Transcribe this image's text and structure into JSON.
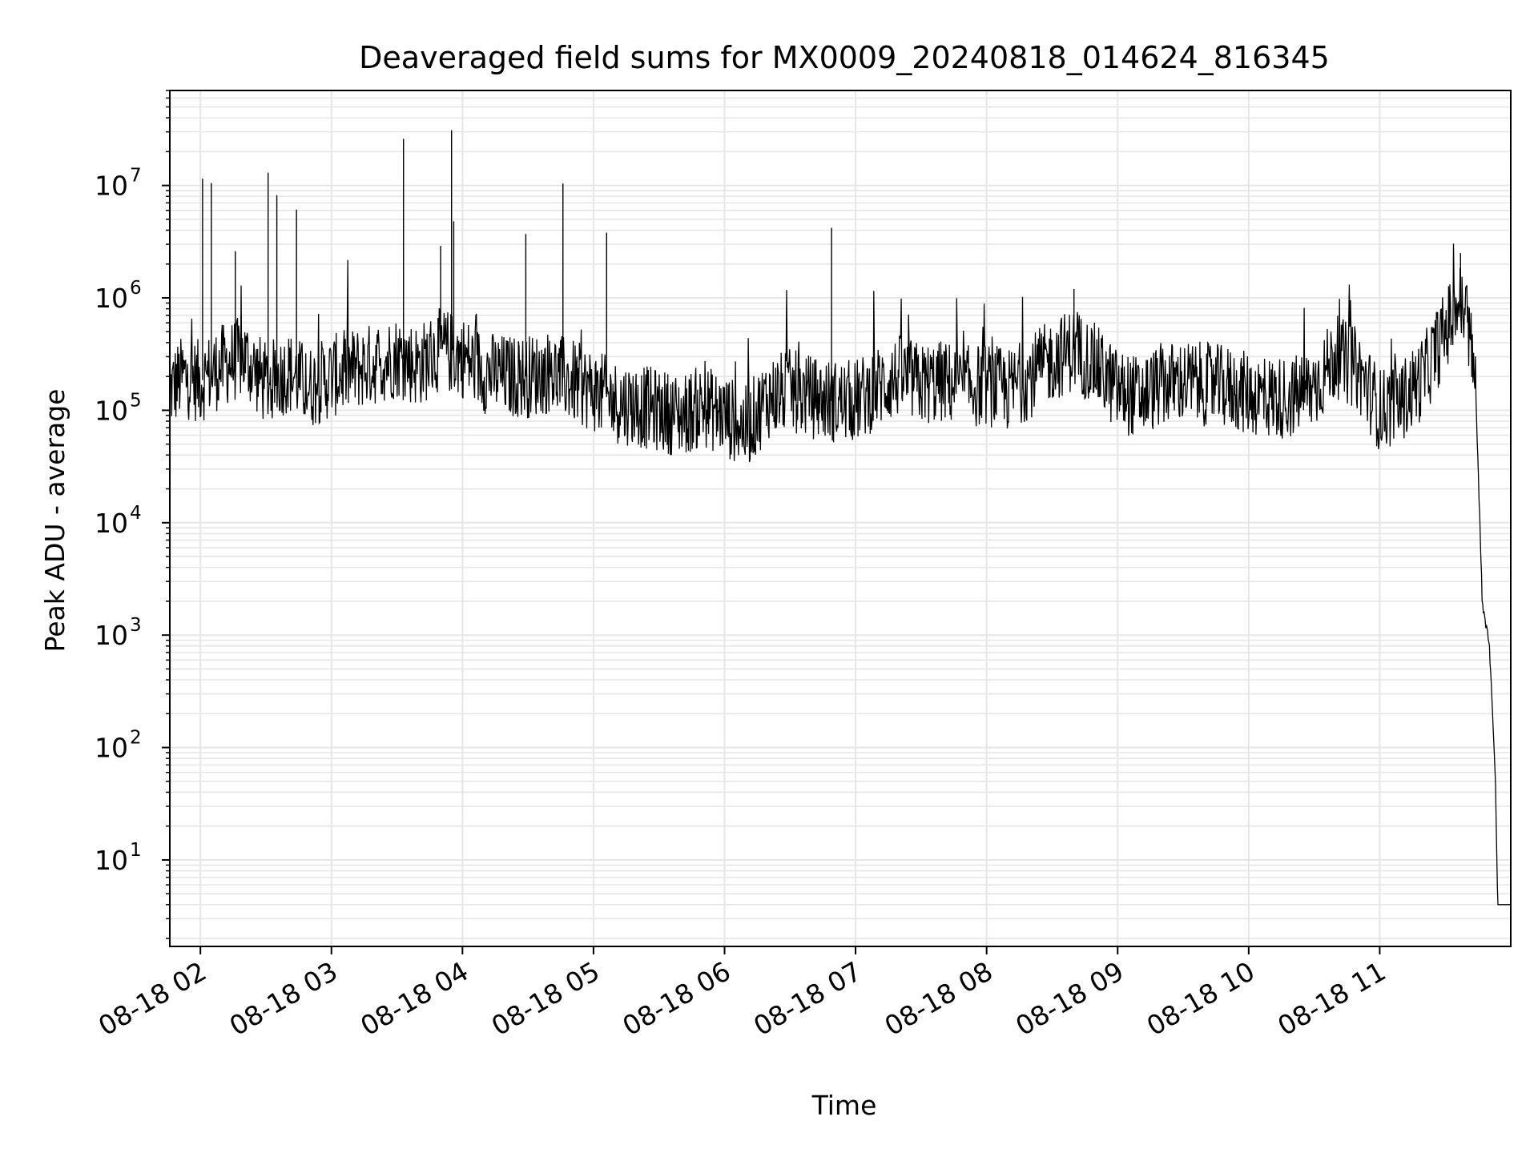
{
  "chart_data": {
    "type": "line",
    "title": "Deaveraged field sums for MX0009_20240818_014624_816345",
    "xlabel": "Time",
    "ylabel": "Peak ADU - average",
    "yscale": "log",
    "ylim": [
      1.7,
      70000000
    ],
    "xlim": [
      "2024-08-18 01:46",
      "2024-08-18 12:00"
    ],
    "grid": true,
    "line_color": "#000000",
    "grid_color": "#e6e6e6",
    "x_tick_labels": [
      {
        "value": "2024-08-18 02:00",
        "label": "08-18 02"
      },
      {
        "value": "2024-08-18 03:00",
        "label": "08-18 03"
      },
      {
        "value": "2024-08-18 04:00",
        "label": "08-18 04"
      },
      {
        "value": "2024-08-18 05:00",
        "label": "08-18 05"
      },
      {
        "value": "2024-08-18 06:00",
        "label": "08-18 06"
      },
      {
        "value": "2024-08-18 07:00",
        "label": "08-18 07"
      },
      {
        "value": "2024-08-18 08:00",
        "label": "08-18 08"
      },
      {
        "value": "2024-08-18 09:00",
        "label": "08-18 09"
      },
      {
        "value": "2024-08-18 10:00",
        "label": "08-18 10"
      },
      {
        "value": "2024-08-18 11:00",
        "label": "08-18 11"
      }
    ],
    "y_tick_labels": [
      {
        "value": 10,
        "base": "10",
        "exp": "1"
      },
      {
        "value": 100,
        "base": "10",
        "exp": "2"
      },
      {
        "value": 1000,
        "base": "10",
        "exp": "3"
      },
      {
        "value": 10000,
        "base": "10",
        "exp": "4"
      },
      {
        "value": 100000,
        "base": "10",
        "exp": "5"
      },
      {
        "value": 1000000,
        "base": "10",
        "exp": "6"
      },
      {
        "value": 10000000,
        "base": "10",
        "exp": "7"
      }
    ],
    "series": [
      {
        "points": [
          [
            "2024-08-18 01:46",
            150000
          ],
          [
            "2024-08-18 01:52",
            200000
          ],
          [
            "2024-08-18 02:00",
            180000
          ],
          [
            "2024-08-18 02:10",
            250000
          ],
          [
            "2024-08-18 02:20",
            300000
          ],
          [
            "2024-08-18 02:30",
            170000
          ],
          [
            "2024-08-18 02:40",
            220000
          ],
          [
            "2024-08-18 02:50",
            160000
          ],
          [
            "2024-08-18 03:00",
            200000
          ],
          [
            "2024-08-18 03:10",
            230000
          ],
          [
            "2024-08-18 03:20",
            260000
          ],
          [
            "2024-08-18 03:30",
            300000
          ],
          [
            "2024-08-18 03:40",
            250000
          ],
          [
            "2024-08-18 03:50",
            350000
          ],
          [
            "2024-08-18 04:00",
            300000
          ],
          [
            "2024-08-18 04:10",
            220000
          ],
          [
            "2024-08-18 04:20",
            200000
          ],
          [
            "2024-08-18 04:30",
            200000
          ],
          [
            "2024-08-18 04:40",
            220000
          ],
          [
            "2024-08-18 04:50",
            180000
          ],
          [
            "2024-08-18 05:00",
            150000
          ],
          [
            "2024-08-18 05:10",
            120000
          ],
          [
            "2024-08-18 05:20",
            110000
          ],
          [
            "2024-08-18 05:30",
            100000
          ],
          [
            "2024-08-18 05:40",
            90000
          ],
          [
            "2024-08-18 05:50",
            110000
          ],
          [
            "2024-08-18 06:00",
            90000
          ],
          [
            "2024-08-18 06:10",
            70000
          ],
          [
            "2024-08-18 06:20",
            130000
          ],
          [
            "2024-08-18 06:30",
            150000
          ],
          [
            "2024-08-18 06:40",
            130000
          ],
          [
            "2024-08-18 06:50",
            120000
          ],
          [
            "2024-08-18 07:00",
            120000
          ],
          [
            "2024-08-18 07:10",
            160000
          ],
          [
            "2024-08-18 07:20",
            200000
          ],
          [
            "2024-08-18 07:30",
            170000
          ],
          [
            "2024-08-18 07:40",
            180000
          ],
          [
            "2024-08-18 07:50",
            160000
          ],
          [
            "2024-08-18 08:00",
            170000
          ],
          [
            "2024-08-18 08:10",
            150000
          ],
          [
            "2024-08-18 08:20",
            200000
          ],
          [
            "2024-08-18 08:30",
            280000
          ],
          [
            "2024-08-18 08:40",
            350000
          ],
          [
            "2024-08-18 08:50",
            250000
          ],
          [
            "2024-08-18 09:00",
            150000
          ],
          [
            "2024-08-18 09:10",
            130000
          ],
          [
            "2024-08-18 09:20",
            170000
          ],
          [
            "2024-08-18 09:30",
            180000
          ],
          [
            "2024-08-18 09:40",
            170000
          ],
          [
            "2024-08-18 09:50",
            160000
          ],
          [
            "2024-08-18 10:00",
            140000
          ],
          [
            "2024-08-18 10:10",
            130000
          ],
          [
            "2024-08-18 10:20",
            130000
          ],
          [
            "2024-08-18 10:30",
            160000
          ],
          [
            "2024-08-18 10:40",
            300000
          ],
          [
            "2024-08-18 10:50",
            230000
          ],
          [
            "2024-08-18 11:00",
            100000
          ],
          [
            "2024-08-18 11:10",
            120000
          ],
          [
            "2024-08-18 11:20",
            200000
          ],
          [
            "2024-08-18 11:30",
            500000
          ],
          [
            "2024-08-18 11:36",
            900000
          ],
          [
            "2024-08-18 11:40",
            700000
          ],
          [
            "2024-08-18 11:44",
            150000
          ],
          [
            "2024-08-18 11:46",
            8000
          ],
          [
            "2024-08-18 11:47",
            1800
          ],
          [
            "2024-08-18 11:50",
            900
          ],
          [
            "2024-08-18 11:51",
            400
          ],
          [
            "2024-08-18 11:53",
            50
          ],
          [
            "2024-08-18 11:54",
            4
          ],
          [
            "2024-08-18 12:00",
            4
          ]
        ],
        "spikes": [
          [
            "2024-08-18 02:01",
            11500000
          ],
          [
            "2024-08-18 02:05",
            10500000
          ],
          [
            "2024-08-18 02:16",
            2600000
          ],
          [
            "2024-08-18 02:31",
            13000000
          ],
          [
            "2024-08-18 02:35",
            8200000
          ],
          [
            "2024-08-18 02:44",
            6100000
          ],
          [
            "2024-08-18 03:33",
            26000000
          ],
          [
            "2024-08-18 03:50",
            2900000
          ],
          [
            "2024-08-18 03:55",
            31000000
          ],
          [
            "2024-08-18 03:56",
            4800000
          ],
          [
            "2024-08-18 04:29",
            3700000
          ],
          [
            "2024-08-18 04:46",
            10400000
          ],
          [
            "2024-08-18 05:06",
            3800000
          ],
          [
            "2024-08-18 06:49",
            4200000
          ],
          [
            "2024-08-18 08:40",
            1200000
          ],
          [
            "2024-08-18 11:37",
            2500000
          ]
        ]
      }
    ]
  }
}
